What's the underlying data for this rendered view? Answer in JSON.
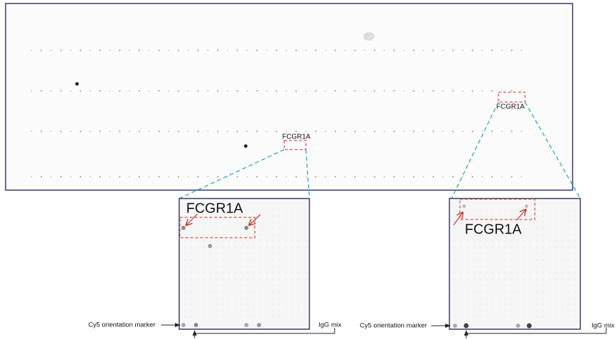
{
  "main_slide": {
    "labels": [
      "FCGR1A",
      "FCGR1A"
    ]
  },
  "zoom_panels": [
    {
      "label": "FCGR1A",
      "marker_label": "Cy5 orientation marker",
      "control_label": "IgG mix"
    },
    {
      "label": "FCGR1A",
      "marker_label": "Cy5 orientation marker",
      "control_label": "IgG mix"
    }
  ]
}
